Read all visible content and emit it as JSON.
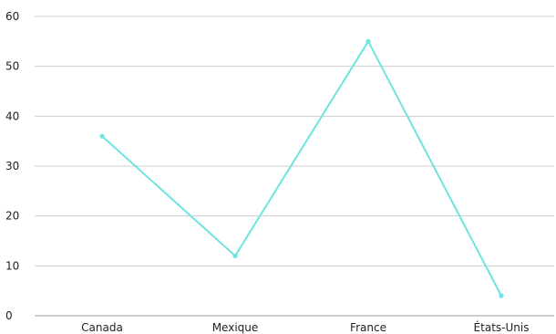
{
  "chart_data": {
    "type": "line",
    "title": "",
    "xlabel": "",
    "ylabel": "",
    "categories": [
      "Canada",
      "Mexique",
      "France",
      "États-Unis"
    ],
    "series": [
      {
        "values": [
          36,
          12,
          55,
          4
        ],
        "color": "#6ee3df"
      }
    ],
    "ylim": [
      0,
      60
    ],
    "yticks": [
      0,
      10,
      20,
      30,
      40,
      50,
      60
    ],
    "y_tick_labels": [
      "0",
      "10",
      "20",
      "30",
      "40",
      "50",
      "60"
    ],
    "grid": true,
    "legend": "none"
  }
}
